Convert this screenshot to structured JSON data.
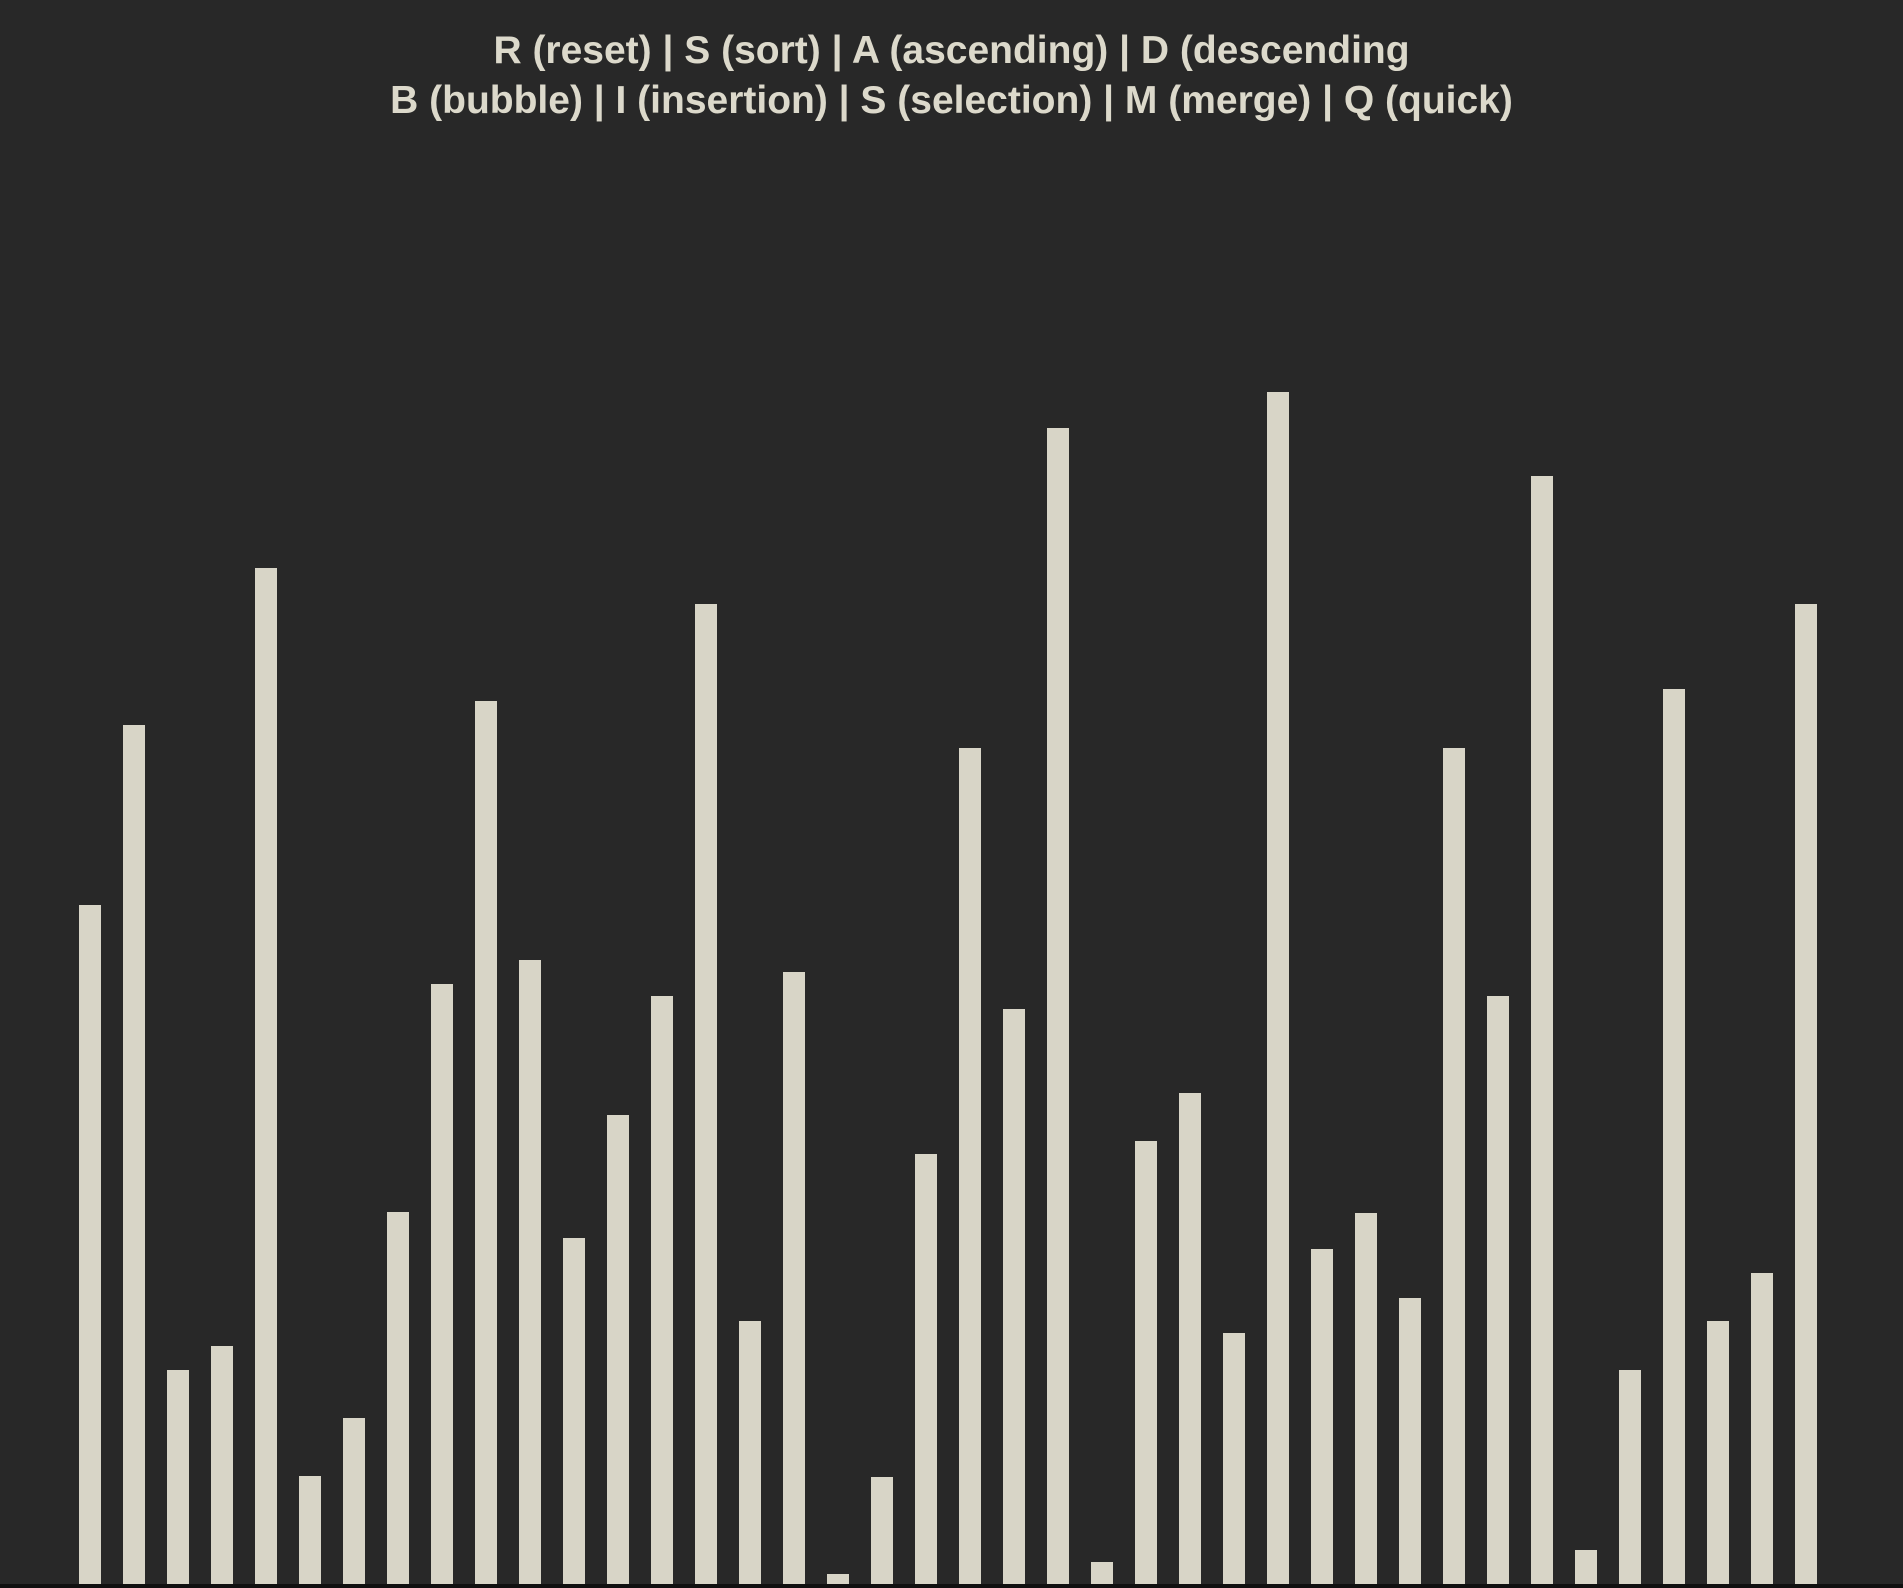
{
  "instructions": {
    "line1": "R (reset) | S (sort) | A (ascending) | D (descending",
    "line2": "B (bubble) | I (insertion) | S (selection) | M (merge) | Q (quick)"
  },
  "colors": {
    "background": "#282828",
    "bar": "#d8d5c7",
    "text": "#dcd9cb"
  },
  "chart_data": {
    "type": "bar",
    "values": [
      679,
      859,
      214,
      238,
      1016,
      108,
      166,
      372,
      600,
      883,
      624,
      346,
      469,
      588,
      980,
      263,
      612,
      10,
      107,
      430,
      836,
      575,
      1156,
      22,
      443,
      491,
      251,
      1192,
      335,
      371,
      286,
      836,
      588,
      1108,
      34,
      214,
      895,
      263,
      311,
      980
    ],
    "ylim": [
      0,
      1200
    ]
  }
}
